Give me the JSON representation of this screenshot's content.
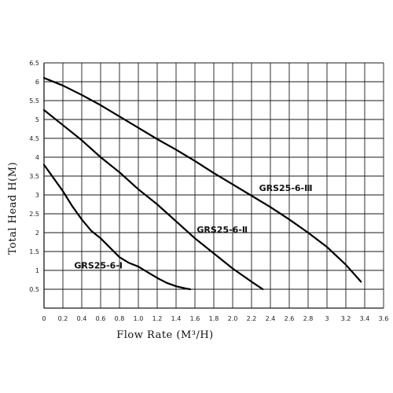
{
  "chart_data": {
    "type": "line",
    "xlabel": "Flow Rate (M³/H)",
    "ylabel": "Total Head H(M)",
    "xlim": [
      0,
      3.6
    ],
    "ylim": [
      0,
      6.5
    ],
    "x_ticks": [
      "0",
      "0.2",
      "0.4",
      "0.6",
      "0.8",
      "1.0",
      "1.2",
      "1.4",
      "1.6",
      "1.8",
      "2.0",
      "2.2",
      "2.4",
      "2.6",
      "2.8",
      "3",
      "3.2",
      "3.4",
      "3.6"
    ],
    "y_ticks": [
      "0.5",
      "1",
      "1.5",
      "2",
      "2.5",
      "3",
      "3.5",
      "4",
      "4.5",
      "5",
      "5.5",
      "6",
      "6.5"
    ],
    "grid": true,
    "series": [
      {
        "name": "GRS25-6-Ⅰ",
        "x": [
          0,
          0.1,
          0.2,
          0.3,
          0.4,
          0.5,
          0.6,
          0.7,
          0.8,
          0.9,
          1.0,
          1.1,
          1.2,
          1.3,
          1.4,
          1.5,
          1.55
        ],
        "y": [
          3.8,
          3.45,
          3.1,
          2.7,
          2.35,
          2.05,
          1.85,
          1.6,
          1.35,
          1.2,
          1.1,
          0.95,
          0.8,
          0.67,
          0.58,
          0.52,
          0.5
        ]
      },
      {
        "name": "GRS25-6-Ⅱ",
        "x": [
          0,
          0.2,
          0.4,
          0.6,
          0.8,
          1.0,
          1.2,
          1.4,
          1.6,
          1.8,
          2.0,
          2.2,
          2.32
        ],
        "y": [
          5.25,
          4.85,
          4.45,
          4.0,
          3.6,
          3.15,
          2.75,
          2.3,
          1.85,
          1.45,
          1.05,
          0.7,
          0.5
        ]
      },
      {
        "name": "GRS25-6-Ⅲ",
        "x": [
          0,
          0.2,
          0.4,
          0.6,
          0.8,
          1.0,
          1.2,
          1.4,
          1.6,
          1.8,
          2.0,
          2.2,
          2.4,
          2.6,
          2.8,
          3.0,
          3.2,
          3.36
        ],
        "y": [
          6.1,
          5.9,
          5.65,
          5.38,
          5.08,
          4.78,
          4.48,
          4.2,
          3.9,
          3.58,
          3.28,
          2.98,
          2.68,
          2.35,
          2.0,
          1.62,
          1.15,
          0.7
        ]
      }
    ],
    "series_labels": [
      {
        "text": "GRS25-6-Ⅰ",
        "x": 0.32,
        "y": 1.05
      },
      {
        "text": "GRS25-6-Ⅱ",
        "x": 1.62,
        "y": 2.0
      },
      {
        "text": "GRS25-6-Ⅲ",
        "x": 2.28,
        "y": 3.1
      }
    ]
  }
}
